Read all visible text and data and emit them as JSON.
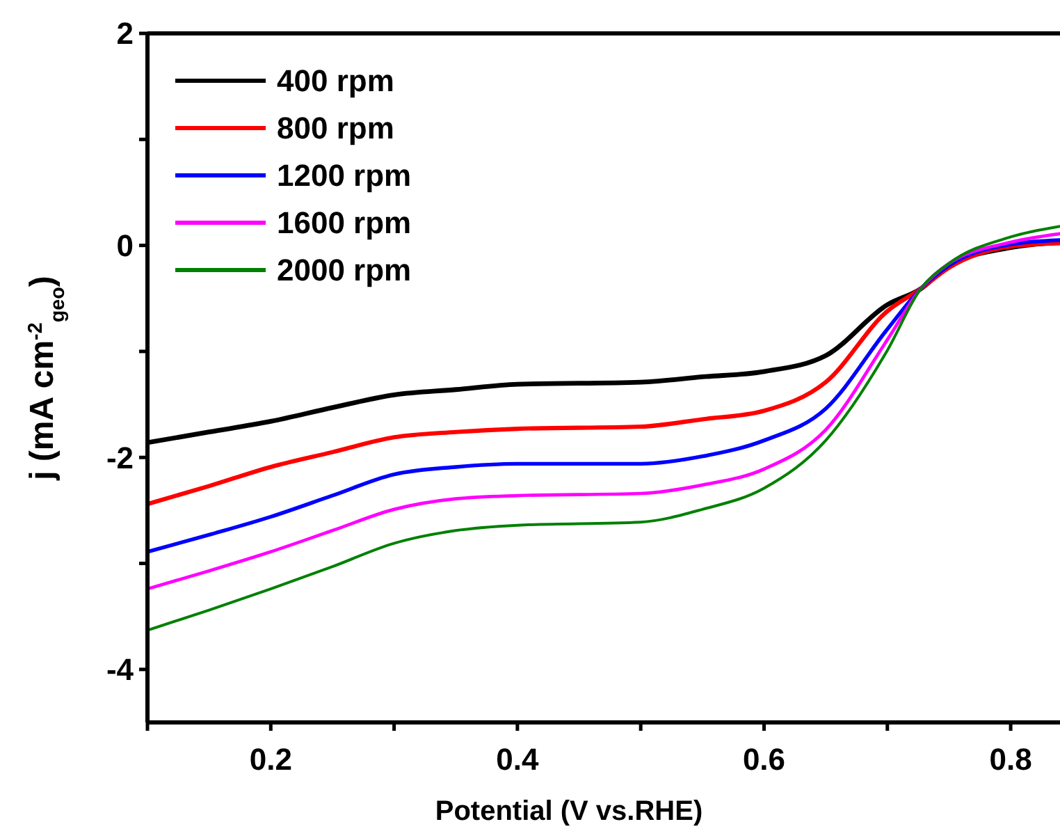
{
  "chart_data": {
    "type": "line",
    "xlabel": "Potential (V vs.RHE)",
    "ylabel": "j (mA cm$^{-2}$$_{geo}$)",
    "x": [
      0.1,
      0.15,
      0.2,
      0.25,
      0.3,
      0.35,
      0.4,
      0.5,
      0.55,
      0.6,
      0.65,
      0.7,
      0.727,
      0.75,
      0.8,
      0.84
    ],
    "series": [
      {
        "name": "400 rpm",
        "color": "#000000",
        "values": [
          -1.86,
          -1.76,
          -1.66,
          -1.53,
          -1.41,
          -1.36,
          -1.31,
          -1.29,
          -1.24,
          -1.19,
          -1.04,
          -0.56,
          -0.41,
          -0.19,
          -0.02,
          0.03
        ]
      },
      {
        "name": "800 rpm",
        "color": "#ff0000",
        "values": [
          -2.44,
          -2.27,
          -2.09,
          -1.95,
          -1.81,
          -1.76,
          -1.73,
          -1.71,
          -1.64,
          -1.56,
          -1.29,
          -0.62,
          -0.41,
          -0.21,
          -0.01,
          0.02
        ]
      },
      {
        "name": "1200 rpm",
        "color": "#0000ff",
        "values": [
          -2.89,
          -2.73,
          -2.56,
          -2.36,
          -2.16,
          -2.09,
          -2.06,
          -2.06,
          -1.99,
          -1.84,
          -1.54,
          -0.79,
          -0.41,
          -0.19,
          0.01,
          0.05
        ]
      },
      {
        "name": "1600 rpm",
        "color": "#ff00ff",
        "values": [
          -3.24,
          -3.07,
          -2.89,
          -2.69,
          -2.49,
          -2.39,
          -2.36,
          -2.34,
          -2.26,
          -2.11,
          -1.74,
          -0.89,
          -0.41,
          -0.17,
          0.03,
          0.11
        ]
      },
      {
        "name": "2000 rpm",
        "color": "#008000",
        "values": [
          -3.63,
          -3.44,
          -3.24,
          -3.03,
          -2.81,
          -2.69,
          -2.64,
          -2.61,
          -2.49,
          -2.29,
          -1.84,
          -0.99,
          -0.41,
          -0.17,
          0.08,
          0.18
        ]
      }
    ],
    "xlim": [
      0.1,
      0.84
    ],
    "xticks": [
      {
        "value": 0.1,
        "label": null
      },
      0.2,
      {
        "value": 0.3,
        "label": null
      },
      0.4,
      {
        "value": 0.5,
        "label": null
      },
      0.6,
      {
        "value": 0.7,
        "label": null
      },
      0.8
    ],
    "ylim": [
      -4.5,
      2
    ],
    "yticks": [
      -4,
      {
        "value": -3,
        "label": null
      },
      -2,
      {
        "value": -1,
        "label": null
      },
      0,
      {
        "value": 1,
        "label": null
      },
      2
    ],
    "grid": false,
    "legend": "top left",
    "marker": "none",
    "line_style": "solid"
  }
}
